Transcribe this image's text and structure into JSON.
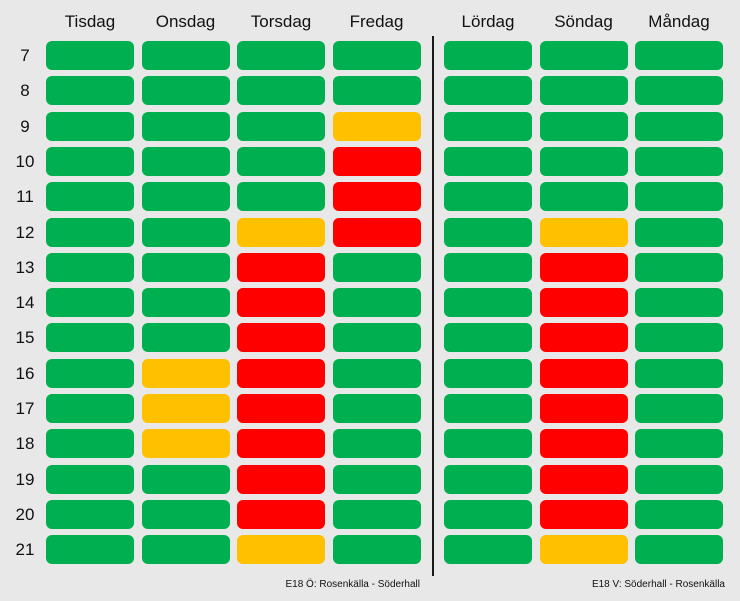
{
  "chart_data": {
    "type": "heatmap",
    "panels": [
      {
        "road_label": "E18 Ö: Rosenkälla - Söderhall",
        "days": [
          "Tisdag",
          "Onsdag",
          "Torsdag",
          "Fredag"
        ],
        "hours": [
          "7",
          "8",
          "9",
          "10",
          "11",
          "12",
          "13",
          "14",
          "15",
          "16",
          "17",
          "18",
          "19",
          "20",
          "21"
        ],
        "status": [
          [
            "green",
            "green",
            "green",
            "green"
          ],
          [
            "green",
            "green",
            "green",
            "green"
          ],
          [
            "green",
            "green",
            "green",
            "yellow"
          ],
          [
            "green",
            "green",
            "green",
            "red"
          ],
          [
            "green",
            "green",
            "green",
            "red"
          ],
          [
            "green",
            "green",
            "yellow",
            "red"
          ],
          [
            "green",
            "green",
            "red",
            "green"
          ],
          [
            "green",
            "green",
            "red",
            "green"
          ],
          [
            "green",
            "green",
            "red",
            "green"
          ],
          [
            "green",
            "yellow",
            "red",
            "green"
          ],
          [
            "green",
            "yellow",
            "red",
            "green"
          ],
          [
            "green",
            "yellow",
            "red",
            "green"
          ],
          [
            "green",
            "green",
            "red",
            "green"
          ],
          [
            "green",
            "green",
            "red",
            "green"
          ],
          [
            "green",
            "green",
            "yellow",
            "green"
          ]
        ]
      },
      {
        "road_label": "E18 V: Söderhall - Rosenkälla",
        "days": [
          "Lördag",
          "Söndag",
          "Måndag"
        ],
        "hours": [
          "7",
          "8",
          "9",
          "10",
          "11",
          "12",
          "13",
          "14",
          "15",
          "16",
          "17",
          "18",
          "19",
          "20",
          "21"
        ],
        "status": [
          [
            "green",
            "green",
            "green"
          ],
          [
            "green",
            "green",
            "green"
          ],
          [
            "green",
            "green",
            "green"
          ],
          [
            "green",
            "green",
            "green"
          ],
          [
            "green",
            "green",
            "green"
          ],
          [
            "green",
            "yellow",
            "green"
          ],
          [
            "green",
            "red",
            "green"
          ],
          [
            "green",
            "red",
            "green"
          ],
          [
            "green",
            "red",
            "green"
          ],
          [
            "green",
            "red",
            "green"
          ],
          [
            "green",
            "red",
            "green"
          ],
          [
            "green",
            "red",
            "green"
          ],
          [
            "green",
            "red",
            "green"
          ],
          [
            "green",
            "red",
            "green"
          ],
          [
            "green",
            "yellow",
            "green"
          ]
        ]
      }
    ],
    "colors": {
      "green": "#00b050",
      "yellow": "#ffc000",
      "red": "#ff0000"
    }
  }
}
